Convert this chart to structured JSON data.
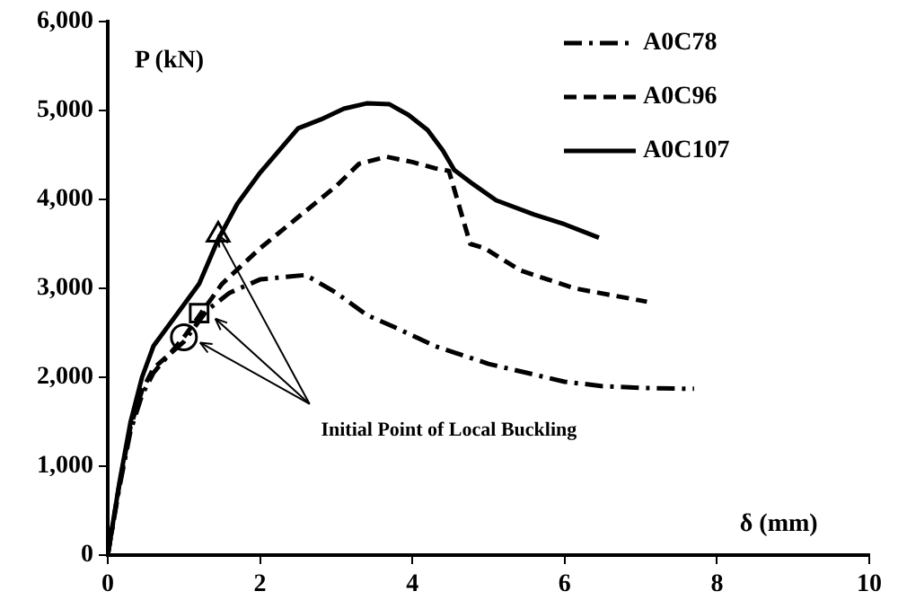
{
  "chart_data": {
    "type": "line",
    "xlabel": "δ (mm)",
    "ylabel": "P (kN)",
    "xlim": [
      0,
      10
    ],
    "xticks": [
      0,
      2,
      4,
      6,
      8,
      10
    ],
    "ylim": [
      0,
      6000
    ],
    "yticks": [
      0,
      {
        "value": 1000,
        "label": "1,000"
      },
      {
        "value": 2000,
        "label": "2,000"
      },
      {
        "value": 3000,
        "label": "3,000"
      },
      {
        "value": 4000,
        "label": "4,000"
      },
      {
        "value": 5000,
        "label": "5,000"
      },
      {
        "value": 6000,
        "label": "6,000"
      }
    ],
    "grid": false,
    "legend": "top right",
    "marker": "none",
    "annotations": [
      {
        "text": "Initial Point of Local Buckling",
        "x": 1.45,
        "y": 3600
      }
    ],
    "series": [
      {
        "name": "A0C78",
        "color": "#000000",
        "line_style": "dashdot",
        "x": [
          0,
          0.15,
          0.3,
          0.45,
          0.6,
          0.8,
          1.0,
          1.3,
          1.6,
          2.0,
          2.6,
          3.0,
          3.4,
          3.8,
          4.3,
          5.0,
          5.5,
          6.0,
          6.5,
          7.0,
          7.7
        ],
        "values": [
          0,
          750,
          1400,
          1800,
          2050,
          2250,
          2400,
          2750,
          2950,
          3100,
          3150,
          2950,
          2700,
          2550,
          2350,
          2150,
          2050,
          1950,
          1900,
          1880,
          1870
        ]
      },
      {
        "name": "A0C96",
        "color": "#000000",
        "line_style": "dashed",
        "x": [
          0,
          0.15,
          0.3,
          0.45,
          0.6,
          0.8,
          1.0,
          1.25,
          1.5,
          2.0,
          2.5,
          3.0,
          3.3,
          3.66,
          4.0,
          4.3,
          4.48,
          4.76,
          4.95,
          5.42,
          6.13,
          7.08
        ],
        "values": [
          0,
          780,
          1450,
          1850,
          2100,
          2250,
          2450,
          2750,
          3050,
          3450,
          3800,
          4150,
          4400,
          4480,
          4420,
          4350,
          4320,
          3500,
          3450,
          3200,
          3000,
          2850
        ]
      },
      {
        "name": "A0C107",
        "color": "#000000",
        "line_style": "solid",
        "x": [
          0,
          0.15,
          0.3,
          0.45,
          0.6,
          0.9,
          1.2,
          1.45,
          1.7,
          2.0,
          2.3,
          2.5,
          2.8,
          3.1,
          3.4,
          3.7,
          3.95,
          4.2,
          4.4,
          4.55,
          4.8,
          5.1,
          5.6,
          6.0,
          6.45
        ],
        "values": [
          0,
          800,
          1500,
          2000,
          2350,
          2700,
          3050,
          3550,
          3950,
          4300,
          4600,
          4800,
          4900,
          5020,
          5080,
          5070,
          4950,
          4780,
          4550,
          4330,
          4170,
          3990,
          3830,
          3720,
          3570
        ]
      },
      {
        "type": "scatter",
        "marker": "circle",
        "color": "#000000",
        "x": [
          1.0
        ],
        "values": [
          2450
        ]
      },
      {
        "type": "scatter",
        "marker": "square",
        "color": "#000000",
        "x": [
          1.2
        ],
        "values": [
          2720
        ]
      },
      {
        "type": "scatter",
        "marker": "triangle",
        "color": "#000000",
        "x": [
          1.45
        ],
        "values": [
          3600
        ]
      }
    ]
  }
}
